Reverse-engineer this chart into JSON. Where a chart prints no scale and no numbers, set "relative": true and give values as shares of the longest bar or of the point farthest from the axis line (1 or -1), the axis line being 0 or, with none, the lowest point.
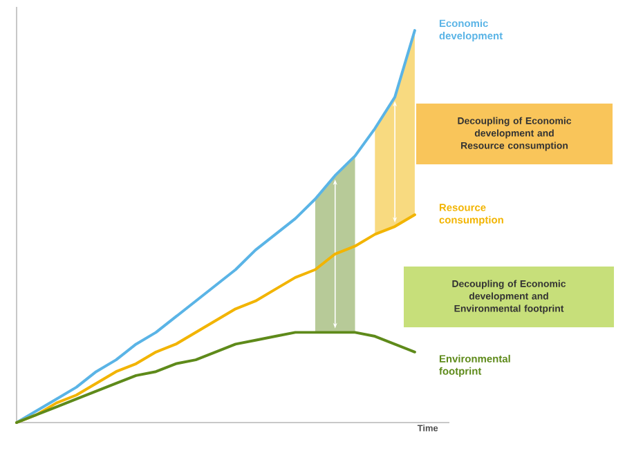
{
  "chart_data": {
    "type": "line",
    "relative": true,
    "xlabel": "Time",
    "marker": "none",
    "legend": "right",
    "categories": [
      null,
      null,
      null,
      null,
      null,
      null,
      null,
      null,
      null,
      null,
      null,
      null,
      null,
      null,
      null,
      null,
      null,
      null,
      null,
      null,
      null
    ],
    "series": [
      {
        "name": "Economic development",
        "color": "#5ab4e6",
        "values": [
          0,
          0.03,
          0.06,
          0.09,
          0.13,
          0.16,
          0.2,
          0.23,
          0.27,
          0.31,
          0.35,
          0.39,
          0.44,
          0.48,
          0.52,
          0.57,
          0.63,
          0.68,
          0.75,
          0.83,
          1
        ]
      },
      {
        "name": "Resource consumption",
        "color": "#f2b400",
        "values": [
          0,
          0.02,
          0.05,
          0.07,
          0.1,
          0.13,
          0.15,
          0.18,
          0.2,
          0.23,
          0.26,
          0.29,
          0.31,
          0.34,
          0.37,
          0.39,
          0.43,
          0.45,
          0.48,
          0.5,
          0.53
        ],
        "lower": [
          null,
          null,
          null,
          null,
          null,
          null,
          null,
          null,
          null,
          null,
          null,
          null,
          null,
          null,
          null,
          null,
          null,
          null,
          0.48,
          0.5,
          0.53
        ],
        "upper": [
          null,
          null,
          null,
          null,
          null,
          null,
          null,
          null,
          null,
          null,
          null,
          null,
          null,
          null,
          null,
          null,
          null,
          null,
          0.75,
          0.83,
          1
        ]
      },
      {
        "name": "Environmental footprint",
        "color": "#5e8a1a",
        "values": [
          0,
          0.02,
          0.04,
          0.06,
          0.08,
          0.1,
          0.12,
          0.13,
          0.15,
          0.16,
          0.18,
          0.2,
          0.21,
          0.22,
          0.23,
          0.23,
          0.23,
          0.23,
          0.22,
          0.2,
          0.18
        ],
        "lower": [
          null,
          null,
          null,
          null,
          null,
          null,
          null,
          null,
          null,
          null,
          null,
          null,
          null,
          null,
          null,
          0.23,
          0.23,
          0.23,
          null,
          null,
          null
        ],
        "upper": [
          null,
          null,
          null,
          null,
          null,
          null,
          null,
          null,
          null,
          null,
          null,
          null,
          null,
          null,
          null,
          0.57,
          0.63,
          0.68,
          null,
          null,
          null
        ]
      }
    ],
    "annotations": [
      "Decoupling of Economic development and Resource consumption",
      "Decoupling of Economic development and Environmental footprint"
    ]
  }
}
